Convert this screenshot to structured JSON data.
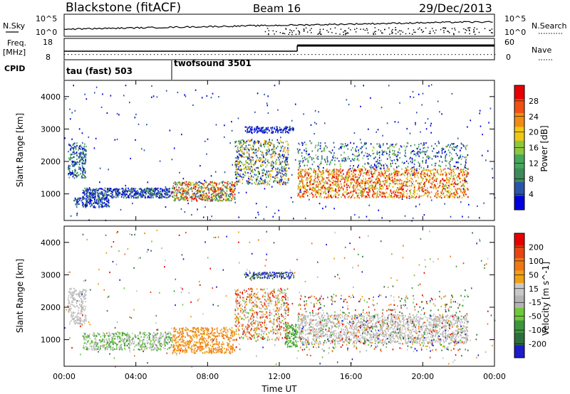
{
  "header": {
    "station": "Blackstone (fitACF)",
    "beam": "Beam 16",
    "date": "29/Dec/2013"
  },
  "side_labels": {
    "nsky": "N.Sky",
    "nsearch": "N.Search",
    "freq_top": "Freq.",
    "freq_unit": "[MHz]",
    "nave": "Nave",
    "cpid": "CPID"
  },
  "strip_ticks": {
    "nsky_left_top": "10^5",
    "nsky_left_bot": "10^0",
    "nsky_right_top": "10^5",
    "nsky_right_bot": "10^0",
    "freq_left_top": "18",
    "freq_left_bot": "8",
    "nave_right_top": "60",
    "nave_right_bot": "0"
  },
  "cpid_labels": [
    "tau (fast) 503",
    "twofsound 3501"
  ],
  "colors": {
    "power_scale": [
      "#0000dd",
      "#2a55aa",
      "#3f8a5a",
      "#46a85a",
      "#8cc83c",
      "#f0c814",
      "#f08c14",
      "#f05014",
      "#e60000"
    ],
    "velocity_scale": [
      "#1c1cc8",
      "#2e6e3c",
      "#3c963c",
      "#6ec83c",
      "#b4b4b4",
      "#c8c8c8",
      "#f0a014",
      "#f07814",
      "#e64614",
      "#e60000"
    ]
  },
  "chart_data": [
    {
      "type": "heatmap",
      "name": "Power",
      "xlabel": "Time UT",
      "ylabel": "Slant Range [km]",
      "x_ticks": [
        "00:00",
        "04:00",
        "08:00",
        "12:00",
        "16:00",
        "20:00",
        "00:00"
      ],
      "x_hours": [
        0,
        4,
        8,
        12,
        16,
        20,
        24
      ],
      "y_ticks": [
        1000,
        2000,
        3000,
        4000
      ],
      "ylim": [
        180,
        4500
      ],
      "xlim": [
        0,
        24
      ],
      "colorbar_label": "Power [dB]",
      "colorbar_ticks": [
        "4",
        "8",
        "12",
        "16",
        "20",
        "24",
        "28"
      ],
      "colorbar_range": [
        0,
        30
      ]
    },
    {
      "type": "heatmap",
      "name": "Velocity",
      "xlabel": "Time UT",
      "ylabel": "Slant Range [km]",
      "x_ticks": [
        "00:00",
        "04:00",
        "08:00",
        "12:00",
        "16:00",
        "20:00",
        "00:00"
      ],
      "x_hours": [
        0,
        4,
        8,
        12,
        16,
        20,
        24
      ],
      "y_ticks": [
        1000,
        2000,
        3000,
        4000
      ],
      "ylim": [
        180,
        4500
      ],
      "xlim": [
        0,
        24
      ],
      "colorbar_label": "Velocity [m s^-1]",
      "colorbar_ticks": [
        "200",
        "100",
        "50",
        "15",
        "-15",
        "-50",
        "-100",
        "-200"
      ]
    }
  ]
}
